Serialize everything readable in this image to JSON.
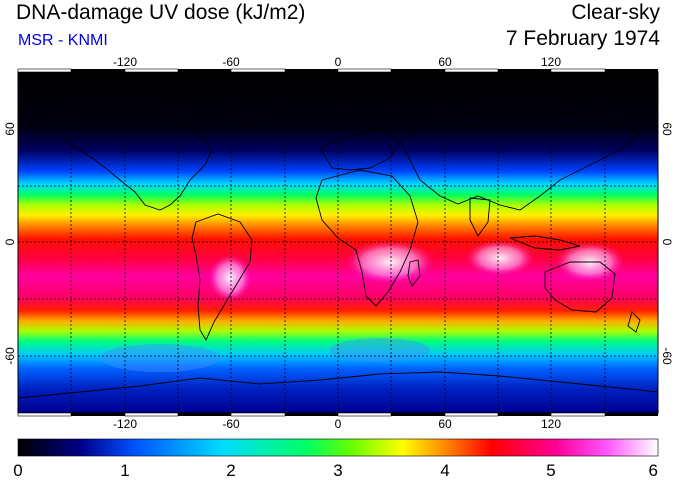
{
  "header": {
    "title": "DNA-damage UV dose (kJ/m2)",
    "source": "MSR - KNMI",
    "condition": "Clear-sky",
    "date": "7 February 1974"
  },
  "map": {
    "projection": "equirectangular",
    "lon_range": [
      -180,
      180
    ],
    "lat_range": [
      -90,
      90
    ],
    "lon_ticks": [
      -120,
      -60,
      0,
      60,
      120
    ],
    "lat_ticks": [
      60,
      0,
      -60
    ],
    "grid": "dashed every 30 degrees",
    "lon_tick_labels": [
      "-120",
      "-60",
      "0",
      "60",
      "120"
    ],
    "lat_tick_labels": [
      "60",
      "0",
      "-60"
    ]
  },
  "colorbar": {
    "min": 0,
    "max": 6,
    "labels": [
      "0",
      "1",
      "2",
      "3",
      "4",
      "5",
      "6"
    ],
    "colors": [
      "#000000",
      "#00008c",
      "#0050ff",
      "#00dcff",
      "#00ff64",
      "#64ff00",
      "#ffff00",
      "#ff9600",
      "#ff0000",
      "#ff0096",
      "#ff55ff",
      "#ffffff"
    ]
  },
  "colors": {
    "title_text": "#000000",
    "source_text": "#0000e6",
    "coastline": "#000000"
  }
}
